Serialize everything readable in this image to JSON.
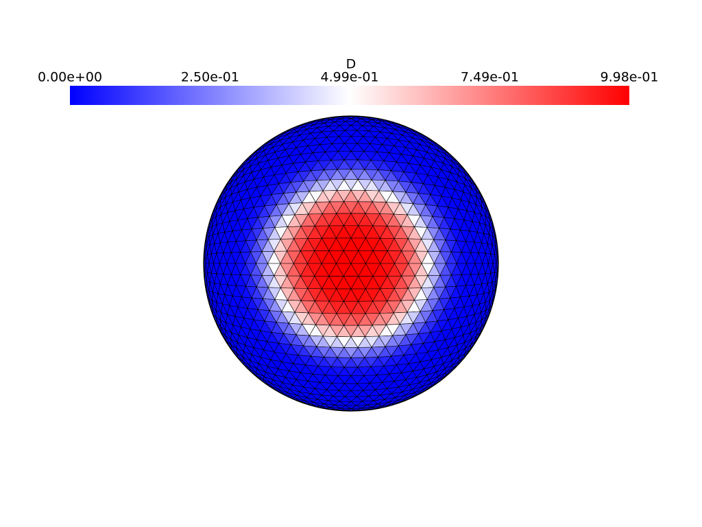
{
  "chart_data": {
    "type": "surface",
    "title": "D",
    "colormap": [
      "#0000ff",
      "#ffffff",
      "#ff0000"
    ],
    "cticks": [
      {
        "value": 0,
        "label": "0.00e+00"
      },
      {
        "value": 0.25,
        "label": "2.50e-01"
      },
      {
        "value": 0.499,
        "label": "4.99e-01"
      },
      {
        "value": 0.749,
        "label": "7.49e-01"
      },
      {
        "value": 0.998,
        "label": "9.98e-01"
      }
    ]
  }
}
